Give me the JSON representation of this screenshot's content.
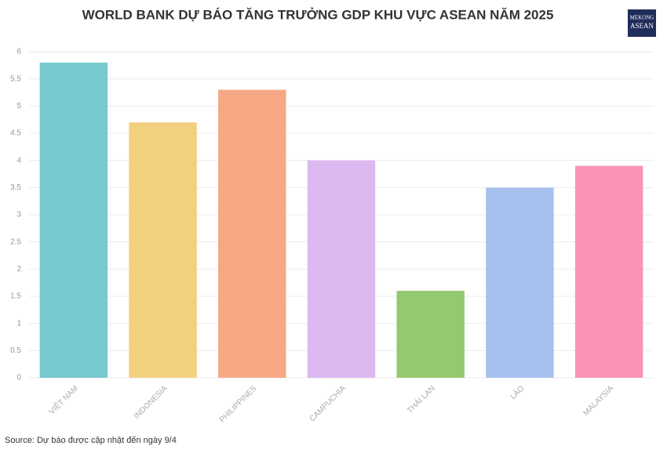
{
  "chart_data": {
    "type": "bar",
    "title": "WORLD BANK DỰ BÁO TĂNG TRƯỞNG GDP KHU VỰC ASEAN NĂM 2025",
    "categories": [
      "VIỆT NAM",
      "INDONESIA",
      "PHILIPPINES",
      "CAMPUCHIA",
      "THÁI LAN",
      "LÀO",
      "MALAYSIA"
    ],
    "values": [
      5.8,
      4.7,
      5.3,
      4.0,
      1.6,
      3.5,
      3.9
    ],
    "colors": [
      "#76c9cf",
      "#f3d07f",
      "#f6a884",
      "#dcb8f1",
      "#93c96f",
      "#a6c0f0",
      "#fb93b4"
    ],
    "ylim": [
      0,
      6
    ],
    "yticks": [
      0,
      0.5,
      1,
      1.5,
      2,
      2.5,
      3,
      3.5,
      4,
      4.5,
      5,
      5.5,
      6
    ],
    "grid": true,
    "source": "Source: Dự báo được cập nhật đến ngày 9/4",
    "logo": [
      "MEKONG",
      "ASEAN"
    ]
  }
}
